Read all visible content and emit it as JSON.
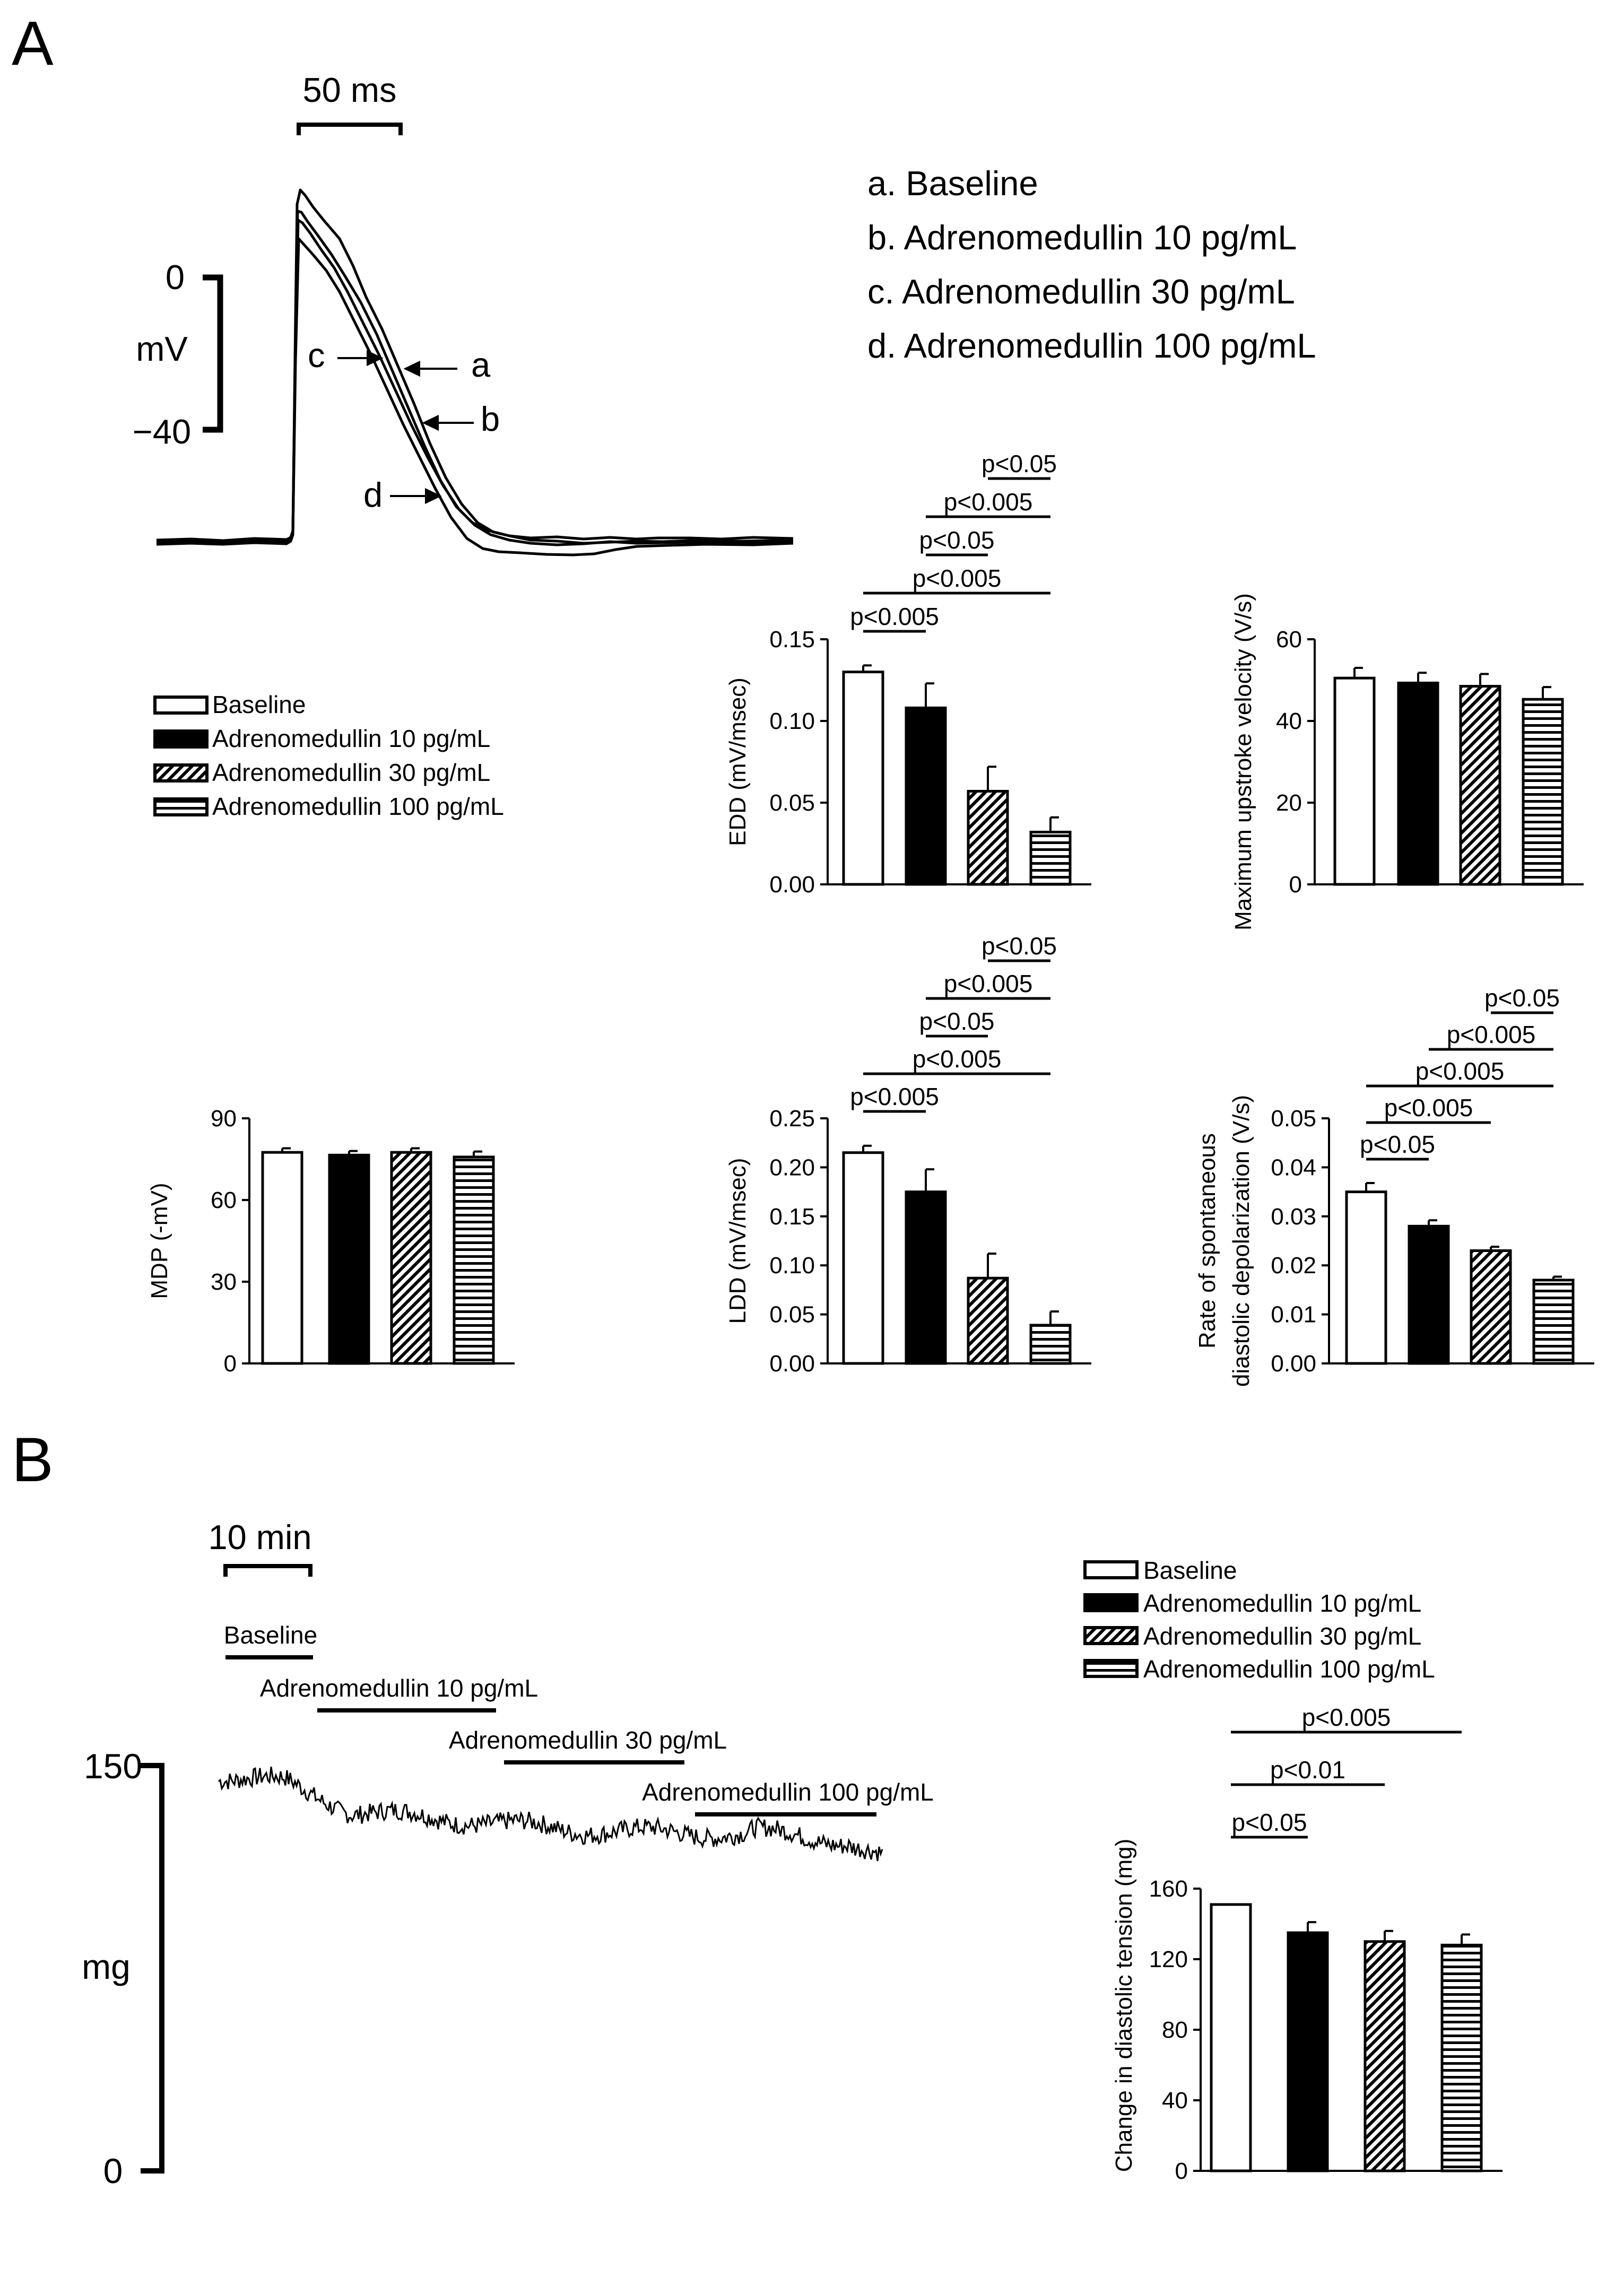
{
  "panelA": {
    "label": "A",
    "trace": {
      "scale_time": "50 ms",
      "scale_top": "0",
      "scale_unit": "mV",
      "scale_bottom": "−40",
      "letters": [
        "a",
        "b",
        "c",
        "d"
      ],
      "key": [
        "a. Baseline",
        "b. Adrenomedullin 10 pg/mL",
        "c. Adrenomedullin 30 pg/mL",
        "d. Adrenomedullin 100 pg/mL"
      ]
    }
  },
  "legend_items": [
    "Baseline",
    "Adrenomedullin 10 pg/mL",
    "Adrenomedullin 30 pg/mL",
    "Adrenomedullin 100 pg/mL"
  ],
  "panelB": {
    "label": "B",
    "scale_time": "10 min",
    "bar_labels": [
      "Baseline",
      "Adrenomedullin 10 pg/mL",
      "Adrenomedullin 30 pg/mL",
      "Adrenomedullin 100 pg/mL"
    ],
    "y_top": "150",
    "y_unit": "mg",
    "y_bottom": "0"
  },
  "chart_data": [
    {
      "id": "edd",
      "type": "bar",
      "ylabel": "EDD (mV/msec)",
      "ylim": [
        0,
        0.15
      ],
      "yticks": [
        "0.00",
        "0.05",
        "0.10",
        "0.15"
      ],
      "values": [
        0.13,
        0.108,
        0.057,
        0.032
      ],
      "errors": [
        0.004,
        0.015,
        0.015,
        0.009
      ],
      "sig": [
        {
          "from": 0,
          "to": 1,
          "label": "p<0.005"
        },
        {
          "from": 0,
          "to": 3,
          "label": "p<0.005"
        },
        {
          "from": 1,
          "to": 2,
          "label": "p<0.05"
        },
        {
          "from": 1,
          "to": 3,
          "label": "p<0.005"
        },
        {
          "from": 2,
          "to": 3,
          "label": "p<0.05"
        }
      ]
    },
    {
      "id": "upstroke",
      "type": "bar",
      "ylabel": "Maximum upstroke velocity (V/s)",
      "ylim": [
        0,
        60
      ],
      "yticks": [
        "0",
        "20",
        "40",
        "60"
      ],
      "values": [
        50.5,
        49.3,
        48.5,
        45.3
      ],
      "errors": [
        2.5,
        2.5,
        3.0,
        3.0
      ],
      "sig": []
    },
    {
      "id": "mdp",
      "type": "bar",
      "ylabel": "MDP (-mV)",
      "ylim": [
        0,
        90
      ],
      "yticks": [
        "0",
        "30",
        "60",
        "90"
      ],
      "values": [
        77.5,
        76.5,
        77.5,
        75.8
      ],
      "errors": [
        1.5,
        1.5,
        1.5,
        2.0
      ],
      "sig": []
    },
    {
      "id": "ldd",
      "type": "bar",
      "ylabel": "LDD (mV/msec)",
      "ylim": [
        0,
        0.25
      ],
      "yticks": [
        "0.00",
        "0.05",
        "0.10",
        "0.15",
        "0.20",
        "0.25"
      ],
      "values": [
        0.215,
        0.175,
        0.087,
        0.039
      ],
      "errors": [
        0.007,
        0.023,
        0.025,
        0.014
      ],
      "sig": [
        {
          "from": 0,
          "to": 1,
          "label": "p<0.005"
        },
        {
          "from": 0,
          "to": 3,
          "label": "p<0.005"
        },
        {
          "from": 1,
          "to": 2,
          "label": "p<0.05"
        },
        {
          "from": 1,
          "to": 3,
          "label": "p<0.005"
        },
        {
          "from": 2,
          "to": 3,
          "label": "p<0.05"
        }
      ]
    },
    {
      "id": "rate",
      "type": "bar",
      "ylabel": [
        "Rate of spontaneous",
        "diastolic depolarization (V/s)"
      ],
      "ylim": [
        0,
        0.05
      ],
      "yticks": [
        "0.00",
        "0.01",
        "0.02",
        "0.03",
        "0.04",
        "0.05"
      ],
      "values": [
        0.035,
        0.028,
        0.023,
        0.017
      ],
      "errors": [
        0.0018,
        0.0012,
        0.0008,
        0.0007
      ],
      "sig": [
        {
          "from": 0,
          "to": 1,
          "label": "p<0.05"
        },
        {
          "from": 0,
          "to": 2,
          "label": "p<0.005"
        },
        {
          "from": 0,
          "to": 3,
          "label": "p<0.005"
        },
        {
          "from": 1,
          "to": 3,
          "label": "p<0.005"
        },
        {
          "from": 2,
          "to": 3,
          "label": "p<0.05"
        }
      ]
    },
    {
      "id": "tension",
      "type": "bar",
      "ylabel": "Change in diastolic tension (mg)",
      "ylim": [
        0,
        160
      ],
      "yticks": [
        "0",
        "40",
        "80",
        "120",
        "160"
      ],
      "values": [
        151,
        135,
        130,
        128
      ],
      "errors": [
        0,
        6,
        6,
        6
      ],
      "sig": [
        {
          "from": 0,
          "to": 1,
          "label": "p<0.05"
        },
        {
          "from": 0,
          "to": 2,
          "label": "p<0.01"
        },
        {
          "from": 0,
          "to": 3,
          "label": "p<0.005"
        }
      ]
    }
  ]
}
